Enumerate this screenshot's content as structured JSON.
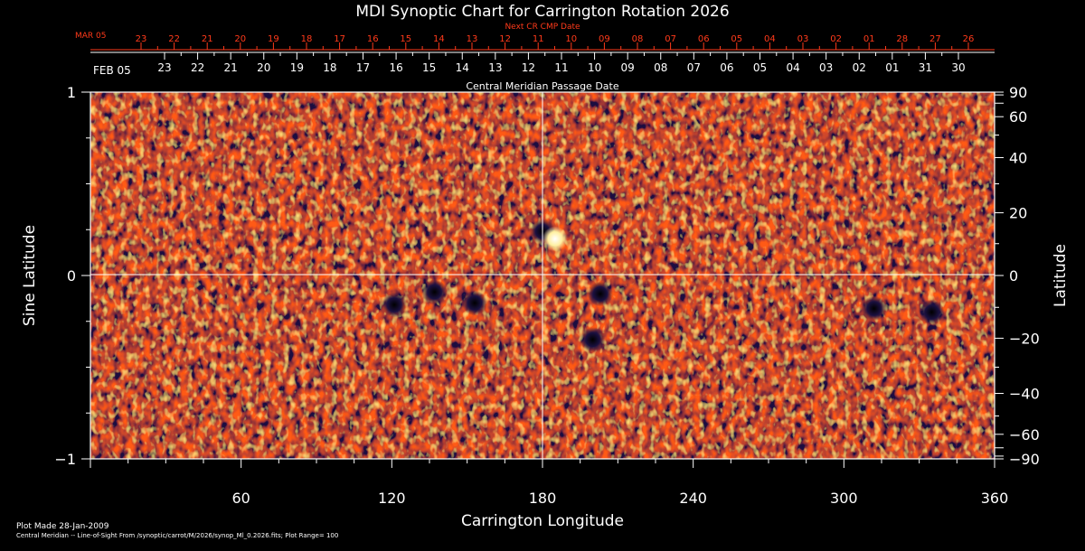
{
  "chart_data": {
    "type": "heatmap",
    "title": "MDI Synoptic Chart for Carrington Rotation 2026",
    "xlabel": "Carrington Longitude",
    "ylabel_left": "Sine Latitude",
    "ylabel_right": "Latitude",
    "xlim": [
      0,
      360
    ],
    "ylim": [
      -1,
      1
    ],
    "x_ticks": [
      "60",
      "120",
      "180",
      "240",
      "300",
      "360"
    ],
    "y_left_ticks": [
      "1",
      "0",
      "−1"
    ],
    "y_right_ticks": [
      "90",
      "60",
      "40",
      "20",
      "0",
      "−20",
      "−40",
      "−60",
      "−90"
    ],
    "next_cr_label": "Next CR CMP Date",
    "next_cr_month": "MAR 05",
    "next_cr_days": [
      "23",
      "22",
      "21",
      "20",
      "19",
      "18",
      "17",
      "16",
      "15",
      "14",
      "13",
      "12",
      "11",
      "10",
      "09",
      "08",
      "07",
      "06",
      "05",
      "04",
      "03",
      "02",
      "01",
      "28",
      "27",
      "26"
    ],
    "cmp_label": "Central Meridian Passage Date",
    "cmp_month": "FEB 05",
    "cmp_days": [
      "23",
      "22",
      "21",
      "20",
      "19",
      "18",
      "17",
      "16",
      "15",
      "14",
      "13",
      "12",
      "11",
      "10",
      "09",
      "08",
      "07",
      "06",
      "05",
      "04",
      "03",
      "02",
      "01",
      "31",
      "30"
    ],
    "plot_range": 100,
    "magnetic_features": [
      {
        "lon": 180,
        "sinlat": 0.24,
        "polarity": "negative"
      },
      {
        "lon": 185,
        "sinlat": 0.2,
        "polarity": "positive"
      },
      {
        "lon": 121,
        "sinlat": -0.16,
        "polarity": "negative"
      },
      {
        "lon": 137,
        "sinlat": -0.09,
        "polarity": "negative"
      },
      {
        "lon": 153,
        "sinlat": -0.15,
        "polarity": "negative"
      },
      {
        "lon": 203,
        "sinlat": -0.1,
        "polarity": "negative"
      },
      {
        "lon": 200,
        "sinlat": -0.35,
        "polarity": "negative"
      },
      {
        "lon": 312,
        "sinlat": -0.18,
        "polarity": "negative"
      },
      {
        "lon": 335,
        "sinlat": -0.2,
        "polarity": "negative"
      }
    ]
  },
  "footer": {
    "plot_made": "Plot Made 28-Jan-2009",
    "source": "Central Meridian -- Line-of-Sight From /synoptic/carrot/M/2026/synop_Ml_0.2026.fits; Plot Range=  100"
  }
}
